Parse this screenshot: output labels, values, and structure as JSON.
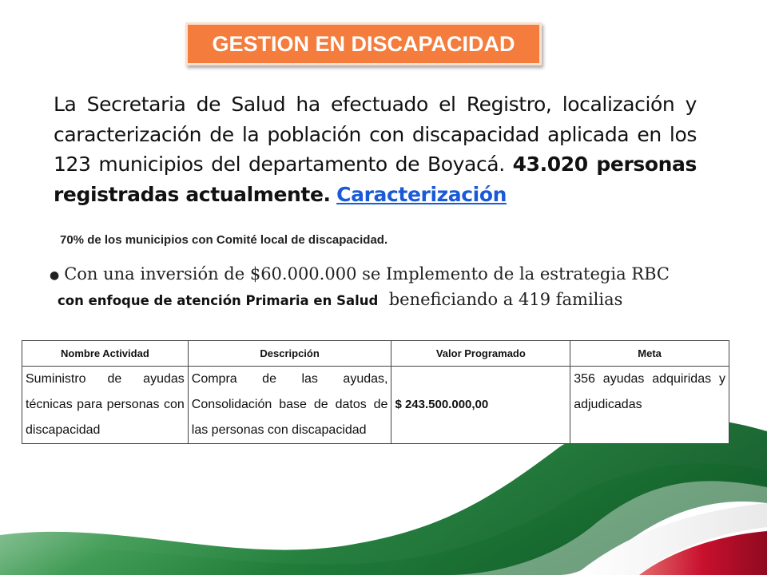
{
  "slide": {
    "title": "GESTION EN DISCAPACIDAD",
    "intro": {
      "text": "La Secretaria de Salud ha efectuado el Registro, localización y caracterización de la población con discapacidad aplicada en los 123 municipios del departamento de Boyacá.",
      "bold": "43.020 personas registradas actualmente.",
      "link": "Caracterización"
    },
    "committee_note": "70% de los municipios con Comité local de discapacidad.",
    "investment": {
      "part1": "Con una inversión de $60.000.000 se Implemento  de la estrategia RBC",
      "bold": "con enfoque de atención Primaria en Salud",
      "part2": "beneficiando a 419 familias"
    },
    "table": {
      "headers": [
        "Nombre Actividad",
        "Descripción",
        "Valor Programado",
        "Meta"
      ],
      "rows": [
        {
          "nombre": "Suministro de ayudas técnicas para personas con discapacidad",
          "descripcion": "Compra de las ayudas, Consolidación base de datos de las personas con discapacidad",
          "valor": "$ 243.500.000,00",
          "meta": "356 ayudas adquiridas y adjudicadas"
        }
      ]
    }
  },
  "colors": {
    "title_bg": "#f47c3c",
    "link": "#1a5ad7",
    "flag_green": "#1e8a3c",
    "flag_red": "#c8102e"
  }
}
